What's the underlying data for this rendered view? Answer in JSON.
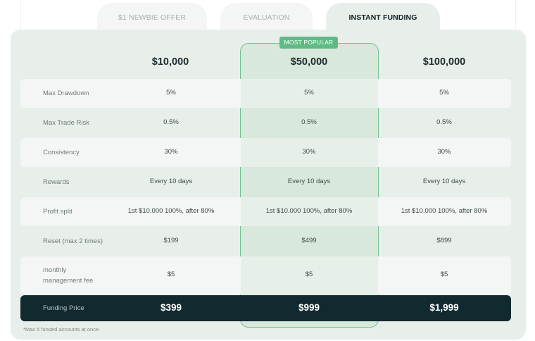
{
  "tabs": [
    {
      "label": "$1 NEWBIE OFFER",
      "active": false
    },
    {
      "label": "EVALUATION",
      "active": false
    },
    {
      "label": "INSTANT FUNDING",
      "active": true
    }
  ],
  "badge": "MOST POPULAR",
  "plans": [
    "$10,000",
    "$50,000",
    "$100,000"
  ],
  "rows": [
    {
      "label": "Max Drawdown",
      "values": [
        "5%",
        "5%",
        "5%"
      ]
    },
    {
      "label": "Max Trade Risk",
      "values": [
        "0.5%",
        "0.5%",
        "0.5%"
      ]
    },
    {
      "label": "Consistency",
      "values": [
        "30%",
        "30%",
        "30%"
      ]
    },
    {
      "label": "Rewards",
      "values": [
        "Every 10 days",
        "Every 10 days",
        "Every 10 days"
      ]
    },
    {
      "label": "Profit split",
      "values": [
        "1st $10.000 100%, after 80%",
        "1st $10.000 100%, after 80%",
        "1st $10.000 100%, after 80%"
      ]
    },
    {
      "label": "Reset (max 2 times)",
      "values": [
        "$199",
        "$499",
        "$899"
      ]
    },
    {
      "label": "monthly\nmanagement fee",
      "values": [
        "$5",
        "$5",
        "$5"
      ]
    }
  ],
  "price_row": {
    "label": "Funding Price",
    "values": [
      "$399",
      "$999",
      "$1,999"
    ]
  },
  "footnote": "*Max 5 funded accounts at once.",
  "colors": {
    "accent": "#5ebb84",
    "dark": "#112a30",
    "panel": "#e8efea"
  }
}
